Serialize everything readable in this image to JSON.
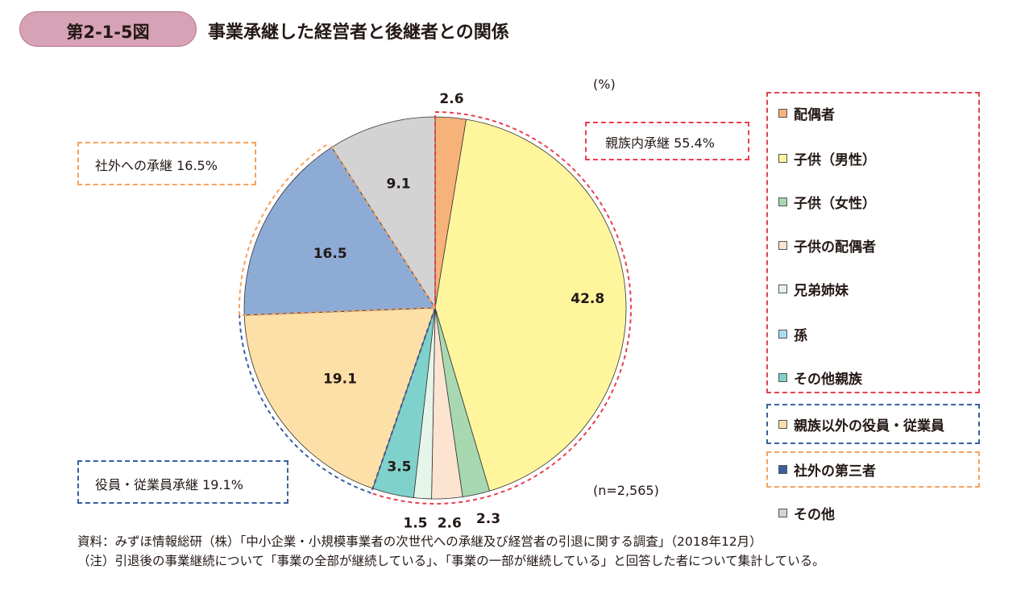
{
  "header": {
    "badge": "第2-1-5図",
    "title": "事業承継した経営者と後継者との関係"
  },
  "unit": "(%)",
  "sample_size": "(n=2,565)",
  "groups": [
    {
      "label": "親族内承継 55.4%",
      "color": "#e8404e"
    },
    {
      "label": "社外への承継 16.5%",
      "color": "#f5a25d"
    },
    {
      "label": "役員・従業員承継 19.1%",
      "color": "#3a5f9e"
    }
  ],
  "chart_data": {
    "type": "pie",
    "title": "事業承継した経営者と後継者との関係",
    "unit": "%",
    "n": "2,565",
    "slices": [
      {
        "name": "配偶者",
        "value": 2.6,
        "label": "2.6",
        "color": "#f7b27a"
      },
      {
        "name": "子供（男性）",
        "value": 42.8,
        "label": "42.8",
        "color": "#fff59d"
      },
      {
        "name": "子供（女性）",
        "value": 2.3,
        "label": "2.3",
        "color": "#a8d8b0"
      },
      {
        "name": "子供の配偶者",
        "value": 2.6,
        "label": "2.6",
        "color": "#fde4d0"
      },
      {
        "name": "兄弟姉妹",
        "value": 1.5,
        "label": "1.5",
        "color": "#e6f5ea"
      },
      {
        "name": "孫",
        "value": 0.0,
        "label": "",
        "color": "#a7dcf3"
      },
      {
        "name": "その他親族",
        "value": 3.5,
        "label": "3.5",
        "color": "#7fd1cc"
      },
      {
        "name": "親族以外の役員・従業員",
        "value": 19.1,
        "label": "19.1",
        "color": "#fde0a8"
      },
      {
        "name": "社外の第三者",
        "value": 16.5,
        "label": "16.5",
        "color": "#8eabd6"
      },
      {
        "name": "その他",
        "value": 9.1,
        "label": "9.1",
        "color": "#d3d3d3"
      }
    ]
  },
  "legend": [
    {
      "label": "配偶者",
      "color": "#f7b27a"
    },
    {
      "label": "子供（男性）",
      "color": "#fff59d"
    },
    {
      "label": "子供（女性）",
      "color": "#a8d8b0"
    },
    {
      "label": "子供の配偶者",
      "color": "#fde4d0"
    },
    {
      "label": "兄弟姉妹",
      "color": "#e6f5ea"
    },
    {
      "label": "孫",
      "color": "#a7dcf3"
    },
    {
      "label": "その他親族",
      "color": "#7fd1cc"
    },
    {
      "label": "親族以外の役員・従業員",
      "color": "#fde0a8"
    },
    {
      "label": "社外の第三者",
      "color": "#3a5f9e"
    },
    {
      "label": "その他",
      "color": "#d3d3d3"
    }
  ],
  "notes": {
    "source": "資料：みずほ情報総研（株）「中小企業・小規模事業者の次世代への承継及び経営者の引退に関する調査」（2018年12月）",
    "note": "（注）引退後の事業継続について「事業の全部が継続している」、「事業の一部が継続している」と回答した者について集計している。"
  }
}
